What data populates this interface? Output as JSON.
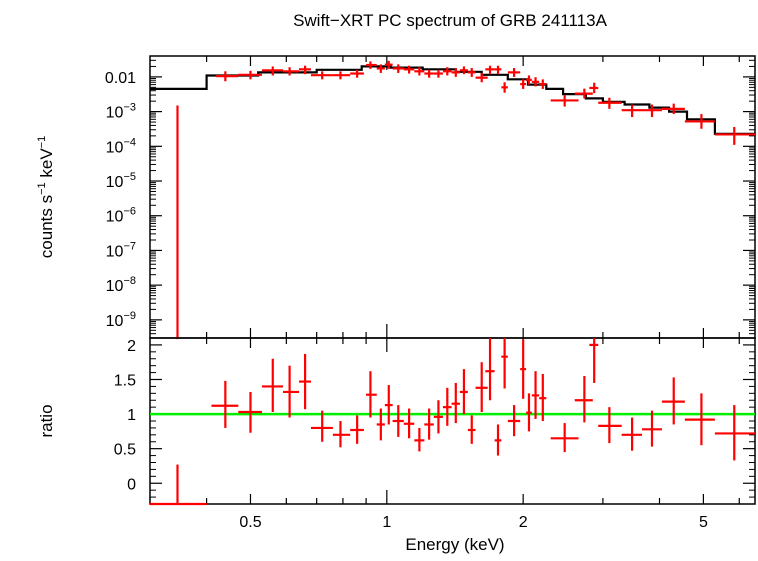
{
  "chart_data": [
    {
      "type": "scatter",
      "panel": "spectrum",
      "title": "Swift−XRT PC spectrum of GRB 241113A",
      "ylabel_parts": [
        "counts s",
        "−1",
        " keV",
        "−1"
      ],
      "x_scale": "log",
      "y_scale": "log",
      "xlim": [
        0.3,
        6.5
      ],
      "ylim": [
        3e-10,
        0.04
      ],
      "y_ticks": [
        {
          "value": 0.01,
          "label": "0.01"
        },
        {
          "value": 0.001,
          "base": "10",
          "exp": "−3"
        },
        {
          "value": 0.0001,
          "base": "10",
          "exp": "−4"
        },
        {
          "value": 1e-05,
          "base": "10",
          "exp": "−5"
        },
        {
          "value": 1e-06,
          "base": "10",
          "exp": "−6"
        },
        {
          "value": 1e-07,
          "base": "10",
          "exp": "−7"
        },
        {
          "value": 1e-08,
          "base": "10",
          "exp": "−8"
        },
        {
          "value": 1e-09,
          "base": "10",
          "exp": "−9"
        }
      ],
      "series": [
        {
          "kind": "data",
          "color": "#ff0000",
          "points": [
            {
              "x": 0.345,
              "xlo": 0.343,
              "xhi": 0.347,
              "y": 3e-10,
              "ylo": 3e-10,
              "yhi": 0.0015
            },
            {
              "x": 0.44,
              "xlo": 0.42,
              "xhi": 0.47,
              "y": 0.0105,
              "ylo": 0.0075,
              "yhi": 0.0145
            },
            {
              "x": 0.5,
              "xlo": 0.47,
              "xhi": 0.53,
              "y": 0.0115,
              "ylo": 0.0085,
              "yhi": 0.015
            },
            {
              "x": 0.56,
              "xlo": 0.53,
              "xhi": 0.59,
              "y": 0.0155,
              "ylo": 0.011,
              "yhi": 0.02
            },
            {
              "x": 0.61,
              "xlo": 0.59,
              "xhi": 0.64,
              "y": 0.0145,
              "ylo": 0.011,
              "yhi": 0.019
            },
            {
              "x": 0.66,
              "xlo": 0.64,
              "xhi": 0.68,
              "y": 0.0165,
              "ylo": 0.012,
              "yhi": 0.021
            },
            {
              "x": 0.72,
              "xlo": 0.68,
              "xhi": 0.76,
              "y": 0.0112,
              "ylo": 0.0085,
              "yhi": 0.0145
            },
            {
              "x": 0.79,
              "xlo": 0.76,
              "xhi": 0.83,
              "y": 0.0112,
              "ylo": 0.0085,
              "yhi": 0.0145
            },
            {
              "x": 0.86,
              "xlo": 0.83,
              "xhi": 0.89,
              "y": 0.0125,
              "ylo": 0.0095,
              "yhi": 0.016
            },
            {
              "x": 0.92,
              "xlo": 0.9,
              "xhi": 0.95,
              "y": 0.022,
              "ylo": 0.017,
              "yhi": 0.028
            },
            {
              "x": 0.97,
              "xlo": 0.95,
              "xhi": 0.99,
              "y": 0.0175,
              "ylo": 0.013,
              "yhi": 0.023
            },
            {
              "x": 1.01,
              "xlo": 0.99,
              "xhi": 1.03,
              "y": 0.0225,
              "ylo": 0.017,
              "yhi": 0.029
            },
            {
              "x": 1.06,
              "xlo": 1.03,
              "xhi": 1.09,
              "y": 0.0175,
              "ylo": 0.013,
              "yhi": 0.023
            },
            {
              "x": 1.12,
              "xlo": 1.09,
              "xhi": 1.15,
              "y": 0.0165,
              "ylo": 0.0125,
              "yhi": 0.021
            },
            {
              "x": 1.18,
              "xlo": 1.15,
              "xhi": 1.21,
              "y": 0.0145,
              "ylo": 0.011,
              "yhi": 0.019
            },
            {
              "x": 1.24,
              "xlo": 1.21,
              "xhi": 1.27,
              "y": 0.0125,
              "ylo": 0.0095,
              "yhi": 0.016
            },
            {
              "x": 1.3,
              "xlo": 1.27,
              "xhi": 1.33,
              "y": 0.0125,
              "ylo": 0.0095,
              "yhi": 0.016
            },
            {
              "x": 1.36,
              "xlo": 1.33,
              "xhi": 1.39,
              "y": 0.0145,
              "ylo": 0.011,
              "yhi": 0.019
            },
            {
              "x": 1.42,
              "xlo": 1.39,
              "xhi": 1.45,
              "y": 0.0135,
              "ylo": 0.01,
              "yhi": 0.018
            },
            {
              "x": 1.48,
              "xlo": 1.45,
              "xhi": 1.51,
              "y": 0.0155,
              "ylo": 0.012,
              "yhi": 0.02
            },
            {
              "x": 1.54,
              "xlo": 1.51,
              "xhi": 1.57,
              "y": 0.0135,
              "ylo": 0.01,
              "yhi": 0.018
            },
            {
              "x": 1.62,
              "xlo": 1.57,
              "xhi": 1.67,
              "y": 0.0095,
              "ylo": 0.007,
              "yhi": 0.013
            },
            {
              "x": 1.69,
              "xlo": 1.65,
              "xhi": 1.73,
              "y": 0.0165,
              "ylo": 0.012,
              "yhi": 0.021
            },
            {
              "x": 1.76,
              "xlo": 1.73,
              "xhi": 1.79,
              "y": 0.0165,
              "ylo": 0.012,
              "yhi": 0.021
            },
            {
              "x": 1.82,
              "xlo": 1.79,
              "xhi": 1.85,
              "y": 0.005,
              "ylo": 0.0035,
              "yhi": 0.007
            },
            {
              "x": 1.91,
              "xlo": 1.85,
              "xhi": 1.97,
              "y": 0.0135,
              "ylo": 0.01,
              "yhi": 0.018
            },
            {
              "x": 2.0,
              "xlo": 1.97,
              "xhi": 2.03,
              "y": 0.0062,
              "ylo": 0.0045,
              "yhi": 0.0085
            },
            {
              "x": 2.06,
              "xlo": 2.03,
              "xhi": 2.09,
              "y": 0.0082,
              "ylo": 0.006,
              "yhi": 0.011
            },
            {
              "x": 2.13,
              "xlo": 2.09,
              "xhi": 2.17,
              "y": 0.0072,
              "ylo": 0.0053,
              "yhi": 0.0098
            },
            {
              "x": 2.21,
              "xlo": 2.17,
              "xhi": 2.25,
              "y": 0.0062,
              "ylo": 0.0045,
              "yhi": 0.0085
            },
            {
              "x": 2.47,
              "xlo": 2.3,
              "xhi": 2.65,
              "y": 0.0021,
              "ylo": 0.0014,
              "yhi": 0.003
            },
            {
              "x": 2.73,
              "xlo": 2.6,
              "xhi": 2.85,
              "y": 0.0033,
              "ylo": 0.0024,
              "yhi": 0.0046
            },
            {
              "x": 2.87,
              "xlo": 2.8,
              "xhi": 2.93,
              "y": 0.0048,
              "ylo": 0.0034,
              "yhi": 0.0068
            },
            {
              "x": 3.1,
              "xlo": 2.93,
              "xhi": 3.3,
              "y": 0.0018,
              "ylo": 0.0012,
              "yhi": 0.0025
            },
            {
              "x": 3.48,
              "xlo": 3.3,
              "xhi": 3.66,
              "y": 0.0011,
              "ylo": 0.0007,
              "yhi": 0.0016
            },
            {
              "x": 3.85,
              "xlo": 3.66,
              "xhi": 4.05,
              "y": 0.0011,
              "ylo": 0.0007,
              "yhi": 0.0016
            },
            {
              "x": 4.3,
              "xlo": 4.05,
              "xhi": 4.55,
              "y": 0.0012,
              "ylo": 0.00085,
              "yhi": 0.0017
            },
            {
              "x": 4.95,
              "xlo": 4.55,
              "xhi": 5.3,
              "y": 0.00052,
              "ylo": 0.00032,
              "yhi": 0.00085
            },
            {
              "x": 5.85,
              "xlo": 5.3,
              "xhi": 6.5,
              "y": 0.00022,
              "ylo": 0.00011,
              "yhi": 0.00036
            }
          ]
        },
        {
          "kind": "model",
          "color": "#000000",
          "steps": [
            {
              "x0": 0.3,
              "x1": 0.4,
              "y": 0.0045
            },
            {
              "x0": 0.4,
              "x1": 0.52,
              "y": 0.011
            },
            {
              "x0": 0.52,
              "x1": 0.7,
              "y": 0.0135
            },
            {
              "x0": 0.7,
              "x1": 0.88,
              "y": 0.016
            },
            {
              "x0": 0.88,
              "x1": 1.02,
              "y": 0.02
            },
            {
              "x0": 1.02,
              "x1": 1.2,
              "y": 0.0185
            },
            {
              "x0": 1.2,
              "x1": 1.42,
              "y": 0.0165
            },
            {
              "x0": 1.42,
              "x1": 1.62,
              "y": 0.014
            },
            {
              "x0": 1.62,
              "x1": 1.85,
              "y": 0.0115
            },
            {
              "x0": 1.85,
              "x1": 2.05,
              "y": 0.0085
            },
            {
              "x0": 2.05,
              "x1": 2.25,
              "y": 0.006
            },
            {
              "x0": 2.25,
              "x1": 2.45,
              "y": 0.0045
            },
            {
              "x0": 2.45,
              "x1": 2.75,
              "y": 0.0032
            },
            {
              "x0": 2.75,
              "x1": 3.0,
              "y": 0.0024
            },
            {
              "x0": 3.0,
              "x1": 3.35,
              "y": 0.0019
            },
            {
              "x0": 3.35,
              "x1": 3.8,
              "y": 0.0016
            },
            {
              "x0": 3.8,
              "x1": 4.2,
              "y": 0.0013
            },
            {
              "x0": 4.2,
              "x1": 4.6,
              "y": 0.001
            },
            {
              "x0": 4.6,
              "x1": 5.3,
              "y": 0.0006
            },
            {
              "x0": 5.3,
              "x1": 6.5,
              "y": 0.00023
            }
          ]
        }
      ]
    },
    {
      "type": "scatter",
      "panel": "ratio",
      "xlabel": "Energy (keV)",
      "ylabel": "ratio",
      "x_scale": "log",
      "xlim": [
        0.3,
        6.5
      ],
      "ylim": [
        -0.3,
        2.1
      ],
      "x_ticks": [
        {
          "value": 0.5,
          "label": "0.5"
        },
        {
          "value": 1,
          "label": "1"
        },
        {
          "value": 2,
          "label": "2"
        },
        {
          "value": 5,
          "label": "5"
        }
      ],
      "y_ticks": [
        {
          "value": 0,
          "label": "0"
        },
        {
          "value": 0.5,
          "label": "0.5"
        },
        {
          "value": 1,
          "label": "1"
        },
        {
          "value": 1.5,
          "label": "1.5"
        },
        {
          "value": 2,
          "label": "2"
        }
      ],
      "reference_line": {
        "y": 1,
        "color": "#00ee00"
      },
      "series": [
        {
          "kind": "data",
          "color": "#ff0000",
          "points": [
            {
              "x": 0.345,
              "xlo": 0.3,
              "xhi": 0.4,
              "y": -0.3,
              "ylo": -0.3,
              "yhi": 0.27
            },
            {
              "x": 0.44,
              "xlo": 0.41,
              "xhi": 0.47,
              "y": 1.12,
              "ylo": 0.8,
              "yhi": 1.48
            },
            {
              "x": 0.5,
              "xlo": 0.47,
              "xhi": 0.53,
              "y": 1.03,
              "ylo": 0.73,
              "yhi": 1.32
            },
            {
              "x": 0.56,
              "xlo": 0.53,
              "xhi": 0.59,
              "y": 1.4,
              "ylo": 1.03,
              "yhi": 1.8
            },
            {
              "x": 0.61,
              "xlo": 0.59,
              "xhi": 0.64,
              "y": 1.32,
              "ylo": 0.95,
              "yhi": 1.7
            },
            {
              "x": 0.66,
              "xlo": 0.64,
              "xhi": 0.68,
              "y": 1.47,
              "ylo": 1.07,
              "yhi": 1.87
            },
            {
              "x": 0.72,
              "xlo": 0.68,
              "xhi": 0.76,
              "y": 0.8,
              "ylo": 0.6,
              "yhi": 1.05
            },
            {
              "x": 0.79,
              "xlo": 0.76,
              "xhi": 0.83,
              "y": 0.7,
              "ylo": 0.52,
              "yhi": 0.9
            },
            {
              "x": 0.86,
              "xlo": 0.83,
              "xhi": 0.89,
              "y": 0.77,
              "ylo": 0.57,
              "yhi": 0.98
            },
            {
              "x": 0.92,
              "xlo": 0.9,
              "xhi": 0.95,
              "y": 1.28,
              "ylo": 0.95,
              "yhi": 1.62
            },
            {
              "x": 0.97,
              "xlo": 0.95,
              "xhi": 0.99,
              "y": 0.85,
              "ylo": 0.62,
              "yhi": 1.08
            },
            {
              "x": 1.01,
              "xlo": 0.99,
              "xhi": 1.03,
              "y": 1.13,
              "ylo": 0.85,
              "yhi": 1.42
            },
            {
              "x": 1.06,
              "xlo": 1.03,
              "xhi": 1.09,
              "y": 0.9,
              "ylo": 0.67,
              "yhi": 1.13
            },
            {
              "x": 1.12,
              "xlo": 1.09,
              "xhi": 1.15,
              "y": 0.86,
              "ylo": 0.65,
              "yhi": 1.08
            },
            {
              "x": 1.18,
              "xlo": 1.15,
              "xhi": 1.21,
              "y": 0.62,
              "ylo": 0.46,
              "yhi": 0.8
            },
            {
              "x": 1.24,
              "xlo": 1.21,
              "xhi": 1.27,
              "y": 0.85,
              "ylo": 0.63,
              "yhi": 1.08
            },
            {
              "x": 1.3,
              "xlo": 1.27,
              "xhi": 1.33,
              "y": 0.96,
              "ylo": 0.72,
              "yhi": 1.2
            },
            {
              "x": 1.36,
              "xlo": 1.33,
              "xhi": 1.39,
              "y": 1.1,
              "ylo": 0.83,
              "yhi": 1.38
            },
            {
              "x": 1.42,
              "xlo": 1.39,
              "xhi": 1.45,
              "y": 1.15,
              "ylo": 0.87,
              "yhi": 1.45
            },
            {
              "x": 1.48,
              "xlo": 1.45,
              "xhi": 1.51,
              "y": 1.32,
              "ylo": 1.0,
              "yhi": 1.65
            },
            {
              "x": 1.54,
              "xlo": 1.51,
              "xhi": 1.57,
              "y": 0.77,
              "ylo": 0.57,
              "yhi": 0.98
            },
            {
              "x": 1.62,
              "xlo": 1.57,
              "xhi": 1.67,
              "y": 1.38,
              "ylo": 1.03,
              "yhi": 1.75
            },
            {
              "x": 1.69,
              "xlo": 1.65,
              "xhi": 1.73,
              "y": 1.62,
              "ylo": 1.2,
              "yhi": 2.1
            },
            {
              "x": 1.76,
              "xlo": 1.73,
              "xhi": 1.79,
              "y": 0.62,
              "ylo": 0.4,
              "yhi": 0.85
            },
            {
              "x": 1.82,
              "xlo": 1.79,
              "xhi": 1.85,
              "y": 1.83,
              "ylo": 1.37,
              "yhi": 2.1
            },
            {
              "x": 1.91,
              "xlo": 1.85,
              "xhi": 1.97,
              "y": 0.9,
              "ylo": 0.68,
              "yhi": 1.13
            },
            {
              "x": 2.0,
              "xlo": 1.97,
              "xhi": 2.03,
              "y": 1.65,
              "ylo": 1.22,
              "yhi": 2.08
            },
            {
              "x": 2.06,
              "xlo": 2.03,
              "xhi": 2.09,
              "y": 1.02,
              "ylo": 0.75,
              "yhi": 1.3
            },
            {
              "x": 2.13,
              "xlo": 2.09,
              "xhi": 2.17,
              "y": 1.27,
              "ylo": 0.93,
              "yhi": 1.62
            },
            {
              "x": 2.21,
              "xlo": 2.17,
              "xhi": 2.25,
              "y": 1.23,
              "ylo": 0.9,
              "yhi": 1.58
            },
            {
              "x": 2.47,
              "xlo": 2.3,
              "xhi": 2.65,
              "y": 0.65,
              "ylo": 0.45,
              "yhi": 0.87
            },
            {
              "x": 2.73,
              "xlo": 2.6,
              "xhi": 2.85,
              "y": 1.2,
              "ylo": 0.88,
              "yhi": 1.55
            },
            {
              "x": 2.87,
              "xlo": 2.8,
              "xhi": 2.93,
              "y": 2.0,
              "ylo": 1.45,
              "yhi": 2.1
            },
            {
              "x": 3.1,
              "xlo": 2.93,
              "xhi": 3.3,
              "y": 0.83,
              "ylo": 0.58,
              "yhi": 1.1
            },
            {
              "x": 3.48,
              "xlo": 3.3,
              "xhi": 3.66,
              "y": 0.7,
              "ylo": 0.47,
              "yhi": 0.95
            },
            {
              "x": 3.85,
              "xlo": 3.66,
              "xhi": 4.05,
              "y": 0.78,
              "ylo": 0.53,
              "yhi": 1.05
            },
            {
              "x": 4.3,
              "xlo": 4.05,
              "xhi": 4.55,
              "y": 1.18,
              "ylo": 0.85,
              "yhi": 1.53
            },
            {
              "x": 4.95,
              "xlo": 4.55,
              "xhi": 5.3,
              "y": 0.92,
              "ylo": 0.55,
              "yhi": 1.3
            },
            {
              "x": 5.85,
              "xlo": 5.3,
              "xhi": 6.5,
              "y": 0.72,
              "ylo": 0.33,
              "yhi": 1.13
            }
          ]
        }
      ]
    }
  ]
}
